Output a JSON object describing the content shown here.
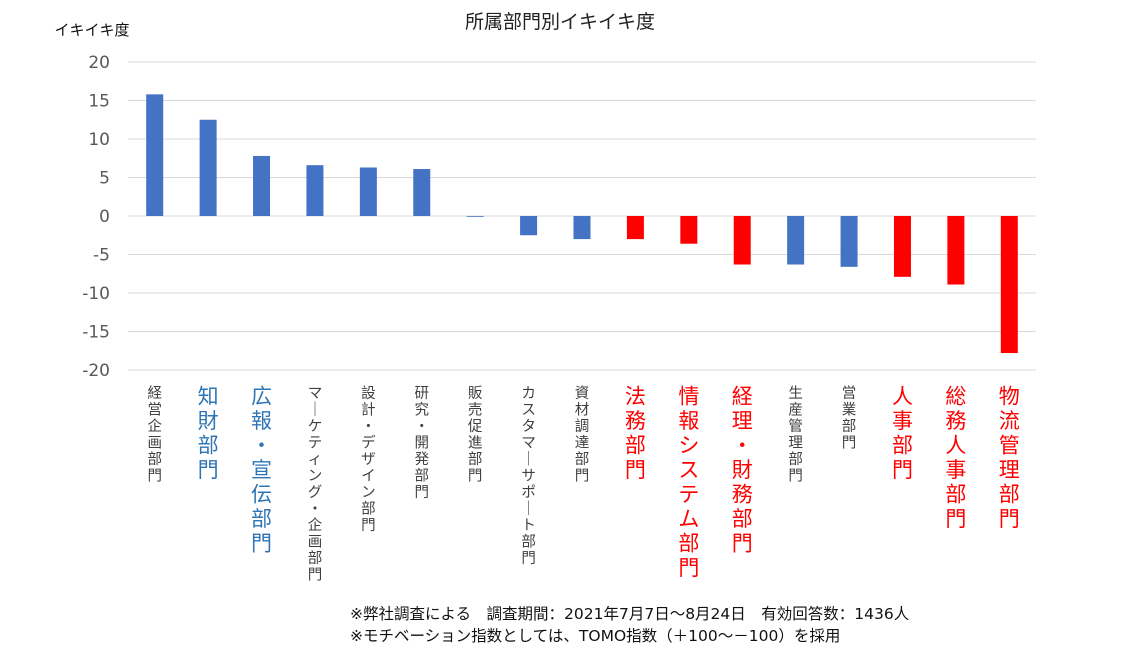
{
  "chart_data": {
    "type": "bar",
    "title": "所属部門別イキイキ度",
    "ylabel": "イキイキ度",
    "xlabel": "",
    "ylim": [
      -20,
      20
    ],
    "yticks": [
      20,
      15,
      10,
      5,
      0,
      -5,
      -10,
      -15,
      -20
    ],
    "grid": true,
    "legend": "none",
    "categories": [
      "経営企画部門",
      "知財部門",
      "広報・宣伝部門",
      "マーケティング・企画部門",
      "設計・デザイン部門",
      "研究・開発部門",
      "販売促進部門",
      "カスタマーサポート部門",
      "資材調達部門",
      "法務部門",
      "情報システム部門",
      "経理・財務部門",
      "生産管理部門",
      "営業部門",
      "人事部門",
      "総務人事部門",
      "物流管理部門"
    ],
    "values": [
      15.8,
      12.5,
      7.8,
      6.6,
      6.3,
      6.1,
      0,
      -2.5,
      -3.0,
      -3.0,
      -3.6,
      -6.3,
      -6.3,
      -6.6,
      -7.9,
      -8.9,
      -17.8
    ],
    "bar_colors": [
      "#4472C4",
      "#4472C4",
      "#4472C4",
      "#4472C4",
      "#4472C4",
      "#4472C4",
      "#4472C4",
      "#4472C4",
      "#4472C4",
      "#FF0000",
      "#FF0000",
      "#FF0000",
      "#4472C4",
      "#4472C4",
      "#FF0000",
      "#FF0000",
      "#FF0000"
    ],
    "label_styles": [
      "normal",
      "blue",
      "blue",
      "normal",
      "normal",
      "normal",
      "normal",
      "normal",
      "normal",
      "red",
      "red",
      "red",
      "normal",
      "normal",
      "red",
      "red",
      "red"
    ]
  },
  "colors": {
    "blue_bar": "#4472C4",
    "red_bar": "#FF0000",
    "blue_label": "#2E75B6",
    "red_label": "#FF0000",
    "normal_label": "#404040",
    "grid": "#D9D9D9"
  },
  "notes": {
    "line1": "※弊社調査による　調査期間：2021年7月7日～8月24日　有効回答数：1436人",
    "line2": "※モチベーション指数としては、TOMO指数（＋100～－100）を採用"
  }
}
